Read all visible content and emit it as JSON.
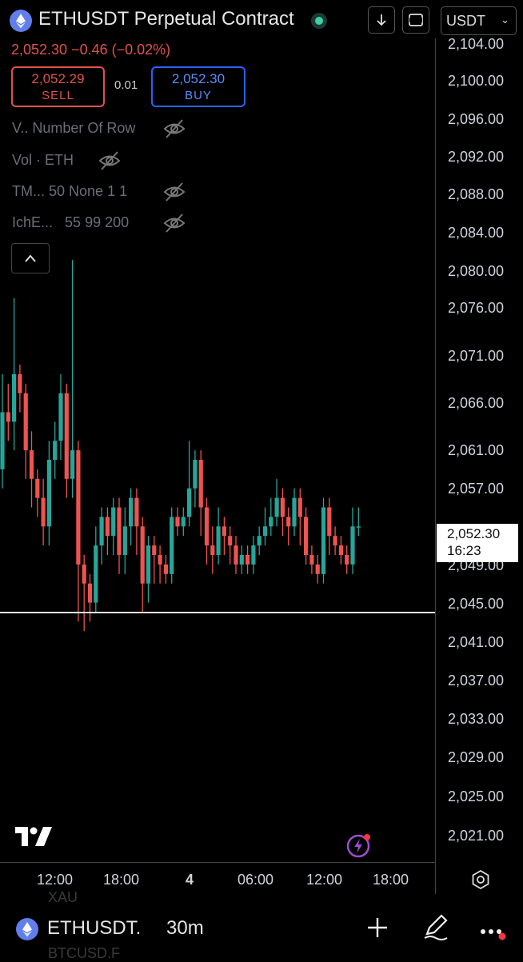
{
  "header": {
    "title": "ETHUSDT Perpetual Contract",
    "currency": "USDT",
    "icons": [
      "ethereum-logo-icon",
      "status-dot-icon",
      "download-icon",
      "fullscreen-icon",
      "chevron-down-icon"
    ]
  },
  "price": {
    "last": "2,052.30",
    "change": "−0.46",
    "change_pct": "(−0.02%)",
    "line": "2,052.30 −0.46 (−0.02%)"
  },
  "trade": {
    "sell_price": "2,052.29",
    "sell_label": "SELL",
    "spread": "0.01",
    "buy_price": "2,052.30",
    "buy_label": "BUY"
  },
  "indicators": [
    {
      "name": "V..",
      "params": "Number Of Row"
    },
    {
      "name": "Vol · ETH",
      "params": ""
    },
    {
      "name": "TM...",
      "params": "50 None 1 1"
    },
    {
      "name": "IchE...",
      "params": "55 99 200"
    }
  ],
  "y_axis": {
    "ticks": [
      "2,104.00",
      "2,100.00",
      "2,096.00",
      "2,092.00",
      "2,088.00",
      "2,084.00",
      "2,080.00",
      "2,076.00",
      "2,071.00",
      "2,066.00",
      "2,061.00",
      "2,057.00",
      "2,049.00",
      "2,045.00",
      "2,041.00",
      "2,037.00",
      "2,033.00",
      "2,029.00",
      "2,025.00",
      "2,021.00"
    ],
    "current_price": "2,052.30",
    "countdown": "16:23"
  },
  "x_axis": {
    "ticks": [
      "12:00",
      "18:00",
      "4",
      "06:00",
      "12:00",
      "18:00"
    ]
  },
  "chart_data": {
    "type": "candlestick",
    "title": "ETHUSDT Perpetual Contract",
    "interval": "30m",
    "y_range": [
      2019,
      2105
    ],
    "horizontal_line": 2043,
    "up_color": "#26a69a",
    "down_color": "#ef5350",
    "candles": [
      [
        2058,
        2064,
        2056,
        2068
      ],
      [
        2064,
        2063,
        2061,
        2067
      ],
      [
        2063,
        2068,
        2060,
        2076
      ],
      [
        2068,
        2066,
        2064,
        2069
      ],
      [
        2066,
        2060,
        2057,
        2067
      ],
      [
        2060,
        2057,
        2054,
        2062
      ],
      [
        2057,
        2055,
        2053,
        2058
      ],
      [
        2055,
        2052,
        2050,
        2057
      ],
      [
        2052,
        2059,
        2050,
        2061
      ],
      [
        2059,
        2061,
        2057,
        2063
      ],
      [
        2061,
        2066,
        2059,
        2068
      ],
      [
        2066,
        2057,
        2055,
        2067
      ],
      [
        2057,
        2060,
        2055,
        2080
      ],
      [
        2060,
        2048,
        2042,
        2061
      ],
      [
        2048,
        2046,
        2041,
        2049
      ],
      [
        2046,
        2044,
        2042,
        2047
      ],
      [
        2044,
        2050,
        2043,
        2052
      ],
      [
        2050,
        2053,
        2048,
        2054
      ],
      [
        2053,
        2051,
        2049,
        2054
      ],
      [
        2051,
        2054,
        2049,
        2055
      ],
      [
        2054,
        2049,
        2047,
        2055
      ],
      [
        2049,
        2052,
        2047,
        2054
      ],
      [
        2052,
        2055,
        2050,
        2056
      ],
      [
        2055,
        2052,
        2049,
        2056
      ],
      [
        2052,
        2046,
        2043,
        2053
      ],
      [
        2046,
        2050,
        2044,
        2051
      ],
      [
        2050,
        2049,
        2046,
        2051
      ],
      [
        2049,
        2048,
        2046,
        2050
      ],
      [
        2048,
        2047,
        2046,
        2049
      ],
      [
        2047,
        2053,
        2046,
        2054
      ],
      [
        2053,
        2052,
        2051,
        2054
      ],
      [
        2052,
        2053,
        2051,
        2054
      ],
      [
        2053,
        2056,
        2052,
        2061
      ],
      [
        2056,
        2059,
        2054,
        2060
      ],
      [
        2059,
        2054,
        2051,
        2060
      ],
      [
        2054,
        2050,
        2048,
        2055
      ],
      [
        2050,
        2049,
        2047,
        2052
      ],
      [
        2049,
        2052,
        2048,
        2054
      ],
      [
        2052,
        2051,
        2049,
        2053
      ],
      [
        2051,
        2050,
        2048,
        2052
      ],
      [
        2050,
        2048,
        2047,
        2051
      ],
      [
        2048,
        2049,
        2047,
        2050
      ],
      [
        2049,
        2048,
        2047,
        2050
      ],
      [
        2048,
        2050,
        2047,
        2051
      ],
      [
        2050,
        2051,
        2049,
        2052
      ],
      [
        2051,
        2052,
        2050,
        2054
      ],
      [
        2052,
        2053,
        2051,
        2055
      ],
      [
        2053,
        2055,
        2052,
        2057
      ],
      [
        2055,
        2053,
        2051,
        2056
      ],
      [
        2053,
        2052,
        2050,
        2054
      ],
      [
        2052,
        2055,
        2051,
        2056
      ],
      [
        2055,
        2053,
        2050,
        2056
      ],
      [
        2053,
        2049,
        2048,
        2054
      ],
      [
        2049,
        2048,
        2047,
        2050
      ],
      [
        2048,
        2047,
        2046,
        2049
      ],
      [
        2047,
        2054,
        2046,
        2055
      ],
      [
        2054,
        2051,
        2049,
        2055
      ],
      [
        2051,
        2050,
        2049,
        2052
      ],
      [
        2050,
        2049,
        2048,
        2051
      ],
      [
        2049,
        2048,
        2047,
        2050
      ],
      [
        2048,
        2052,
        2047,
        2054
      ],
      [
        2052,
        2052,
        2051,
        2054
      ]
    ]
  },
  "bottom_bar": {
    "symbol": "ETHUSDT.",
    "interval": "30m",
    "ghost_top": "XAU",
    "ghost_bottom": "BTCUSD.F"
  }
}
